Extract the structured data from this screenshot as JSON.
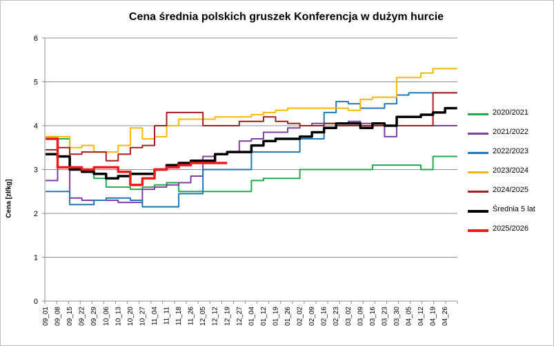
{
  "chart_data": {
    "type": "line",
    "title": "Cena średnia polskich gruszek Konferencja w dużym hurcie",
    "ylabel": "Cena [zł/kg]",
    "xlabel": "",
    "ylim": [
      0,
      6
    ],
    "yticks": [
      0,
      1,
      2,
      3,
      4,
      5,
      6
    ],
    "grid": "horizontal",
    "legend_position": "right",
    "x_categories": [
      "09_01",
      "09_08",
      "09_15",
      "09_22",
      "09_29",
      "10_06",
      "10_13",
      "10_20",
      "10_27",
      "11_04",
      "11_11",
      "11_18",
      "11_26",
      "12_05",
      "12_12",
      "12_19",
      "12_27",
      "01_04",
      "01_12",
      "01_19",
      "01_26",
      "02_02",
      "02_09",
      "02_16",
      "02_23",
      "03_02",
      "03_09",
      "03_16",
      "03_23",
      "03_30",
      "04_05",
      "04_12",
      "04_19",
      "04_26"
    ],
    "series": [
      {
        "name": "2020/2021",
        "color": "#22a84a",
        "width": 2,
        "values": [
          3.75,
          3.7,
          3.05,
          3.0,
          2.8,
          2.6,
          2.6,
          2.55,
          2.6,
          2.65,
          2.7,
          2.5,
          2.5,
          2.5,
          2.5,
          2.5,
          2.5,
          2.75,
          2.8,
          2.8,
          2.8,
          3.0,
          3.0,
          3.0,
          3.0,
          3.0,
          3.0,
          3.1,
          3.1,
          3.1,
          3.1,
          3.0,
          3.3,
          3.3
        ]
      },
      {
        "name": "2021/2022",
        "color": "#7b3fa0",
        "width": 2,
        "values": [
          2.75,
          3.05,
          2.35,
          2.3,
          2.3,
          2.3,
          2.25,
          2.25,
          2.55,
          2.6,
          2.65,
          2.7,
          2.85,
          3.3,
          3.35,
          3.4,
          3.65,
          3.7,
          3.85,
          3.85,
          3.95,
          4.0,
          4.05,
          4.05,
          4.05,
          4.1,
          4.05,
          4.0,
          3.75,
          4.0,
          4.0,
          4.0,
          4.0,
          4.0
        ]
      },
      {
        "name": "2022/2023",
        "color": "#1f77b4",
        "width": 2,
        "values": [
          2.5,
          2.5,
          2.2,
          2.2,
          2.3,
          2.35,
          2.35,
          2.3,
          2.15,
          2.15,
          2.15,
          2.45,
          2.45,
          3.0,
          3.0,
          3.0,
          3.0,
          3.4,
          3.4,
          3.4,
          3.4,
          3.7,
          3.7,
          4.3,
          4.55,
          4.5,
          4.4,
          4.4,
          4.5,
          4.7,
          4.75,
          4.75,
          4.75,
          4.75
        ]
      },
      {
        "name": "2023/2024",
        "color": "#f5b800",
        "width": 2,
        "values": [
          3.75,
          3.75,
          3.5,
          3.55,
          3.4,
          3.4,
          3.55,
          3.95,
          3.7,
          3.75,
          4.0,
          4.15,
          4.15,
          4.15,
          4.2,
          4.2,
          4.2,
          4.25,
          4.3,
          4.35,
          4.4,
          4.4,
          4.4,
          4.4,
          4.4,
          4.35,
          4.6,
          4.65,
          4.65,
          5.1,
          5.1,
          5.2,
          5.3,
          5.3
        ]
      },
      {
        "name": "2024/2025",
        "color": "#a51d1d",
        "width": 2,
        "values": [
          3.45,
          3.5,
          3.35,
          3.4,
          3.4,
          3.2,
          3.35,
          3.5,
          3.55,
          4.0,
          4.3,
          4.3,
          4.3,
          4.0,
          4.0,
          4.0,
          4.1,
          4.1,
          4.2,
          4.1,
          4.05,
          4.0,
          4.0,
          4.05,
          4.0,
          4.0,
          4.0,
          4.0,
          4.0,
          4.0,
          4.0,
          4.0,
          4.75,
          4.75
        ]
      },
      {
        "name": "Średnia 5 lat",
        "color": "#000000",
        "width": 3.5,
        "values": [
          3.35,
          3.3,
          3.0,
          2.95,
          2.9,
          2.8,
          2.85,
          2.9,
          2.9,
          3.0,
          3.1,
          3.15,
          3.2,
          3.2,
          3.35,
          3.4,
          3.4,
          3.55,
          3.65,
          3.7,
          3.7,
          3.75,
          3.85,
          3.95,
          4.05,
          4.05,
          3.95,
          4.05,
          4.0,
          4.2,
          4.2,
          4.25,
          4.3,
          4.4
        ]
      },
      {
        "name": "2025/2026",
        "color": "#ee1c1c",
        "width": 3.5,
        "values": [
          3.7,
          3.05,
          3.05,
          3.0,
          3.05,
          3.05,
          2.95,
          2.65,
          2.8,
          3.0,
          3.05,
          3.1,
          3.15,
          3.15,
          3.15,
          null,
          null,
          null,
          null,
          null,
          null,
          null,
          null,
          null,
          null,
          null,
          null,
          null,
          null,
          null,
          null,
          null,
          null,
          null
        ]
      }
    ]
  }
}
